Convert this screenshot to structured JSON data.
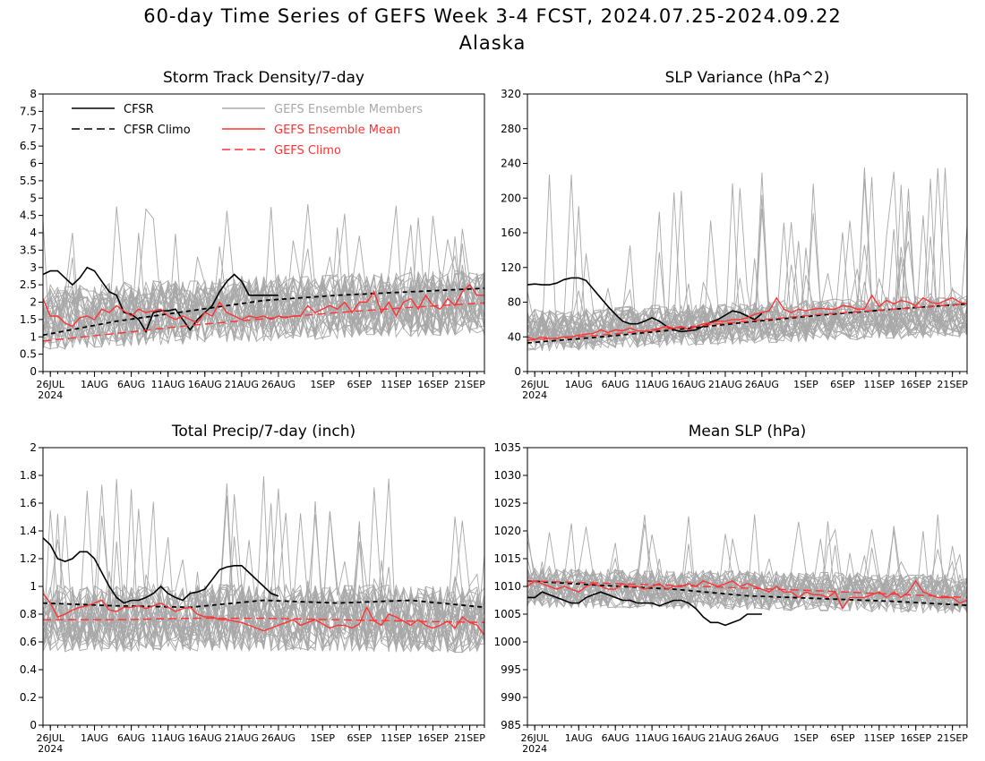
{
  "title": "60-day Time Series of GEFS Week 3-4 FCST, 2024.07.25-2024.09.22",
  "subtitle": "Alaska",
  "colors": {
    "cfsr": "#000000",
    "members": "#a8a8a8",
    "ensemble_mean": "#ff3333",
    "gefs_climo": "#ff3333"
  },
  "legend": {
    "placement": "top-left of first panel",
    "items": [
      {
        "label": "CFSR",
        "style": "solid",
        "color": "#000000"
      },
      {
        "label": "CFSR Climo",
        "style": "dashed",
        "color": "#000000"
      },
      {
        "label": "GEFS Ensemble Members",
        "style": "solid",
        "color": "#a8a8a8"
      },
      {
        "label": "GEFS Ensemble Mean",
        "style": "solid",
        "color": "#ff3333"
      },
      {
        "label": "GEFS Climo",
        "style": "dashed",
        "color": "#ff3333"
      }
    ]
  },
  "x_axis": {
    "range_days": [
      0,
      60
    ],
    "tick_labels": [
      "26JUL",
      "1AUG",
      "6AUG",
      "11AUG",
      "16AUG",
      "21AUG",
      "26AUG",
      "1SEP",
      "6SEP",
      "11SEP",
      "16SEP",
      "21SEP"
    ],
    "tick_days": [
      1,
      7,
      12,
      17,
      22,
      27,
      32,
      38,
      43,
      48,
      53,
      58
    ],
    "year_label": "2024"
  },
  "chart_data": [
    {
      "type": "line",
      "title": "Storm Track Density/7-day",
      "ylim": [
        0,
        8
      ],
      "yticks": [
        "0",
        "0.5",
        "1",
        "1.5",
        "2",
        "2.5",
        "3",
        "3.5",
        "4",
        "4.5",
        "5",
        "5.5",
        "6",
        "6.5",
        "7",
        "7.5",
        "8"
      ],
      "grid": false,
      "members": {
        "count": 31,
        "center": 2.0,
        "spread": 0.85,
        "max": 4.9
      },
      "series": [
        {
          "name": "CFSR",
          "x": [
            0,
            1,
            2,
            3,
            4,
            5,
            6,
            7,
            8,
            9,
            10,
            11,
            12,
            13,
            14,
            15,
            16,
            17,
            18,
            19,
            20,
            21,
            22,
            23,
            24,
            25,
            26,
            27,
            28,
            29,
            30,
            31,
            32
          ],
          "y": [
            2.8,
            2.9,
            2.9,
            2.7,
            2.5,
            2.7,
            3.0,
            2.9,
            2.6,
            2.3,
            2.2,
            1.7,
            1.65,
            1.5,
            1.15,
            1.7,
            1.75,
            1.75,
            1.8,
            1.5,
            1.2,
            1.5,
            1.7,
            1.9,
            2.3,
            2.6,
            2.8,
            2.6,
            2.2,
            2.2,
            2.2,
            2.2,
            2.2
          ]
        },
        {
          "name": "CFSR Climo",
          "x": [
            0,
            10,
            20,
            30,
            40,
            50,
            60
          ],
          "y": [
            1.05,
            1.45,
            1.75,
            2.05,
            2.2,
            2.3,
            2.4
          ]
        },
        {
          "name": "GEFS Ensemble Mean",
          "y": [
            2.1,
            1.6,
            1.6,
            1.4,
            1.3,
            1.55,
            1.6,
            1.5,
            1.8,
            1.7,
            1.9,
            1.75,
            1.6,
            1.8,
            1.7,
            1.75,
            1.8,
            1.6,
            1.5,
            1.6,
            1.5,
            1.4,
            1.7,
            1.6,
            2.0,
            1.7,
            1.6,
            1.5,
            1.6,
            1.55,
            1.6,
            1.5,
            1.6,
            1.55,
            1.6,
            1.6,
            1.9,
            1.7,
            1.8,
            1.9,
            1.8,
            2.0,
            1.7,
            2.0,
            2.0,
            2.3,
            1.7,
            2.0,
            1.6,
            2.0,
            2.1,
            1.8,
            2.2,
            1.9,
            1.8,
            2.1,
            1.9,
            2.3,
            2.5,
            2.2,
            2.2
          ]
        },
        {
          "name": "GEFS Climo",
          "x": [
            0,
            10,
            20,
            30,
            40,
            50,
            60
          ],
          "y": [
            0.88,
            1.1,
            1.33,
            1.52,
            1.7,
            1.85,
            1.98
          ]
        }
      ]
    },
    {
      "type": "line",
      "title": "SLP Variance (hPa^2)",
      "ylim": [
        0,
        320
      ],
      "yticks": [
        "0",
        "40",
        "80",
        "120",
        "160",
        "200",
        "240",
        "280",
        "320"
      ],
      "grid": false,
      "members": {
        "count": 31,
        "center": 55,
        "spread": 22,
        "max": 240
      },
      "series": [
        {
          "name": "CFSR",
          "x": [
            0,
            1,
            2,
            3,
            4,
            5,
            6,
            7,
            8,
            9,
            10,
            11,
            12,
            13,
            14,
            15,
            16,
            17,
            18,
            19,
            20,
            21,
            22,
            23,
            24,
            25,
            26,
            27,
            28,
            29,
            30,
            31,
            32
          ],
          "y": [
            100,
            101,
            100,
            100,
            102,
            106,
            108,
            108,
            105,
            95,
            85,
            75,
            66,
            58,
            55,
            55,
            58,
            62,
            58,
            52,
            48,
            46,
            47,
            48,
            52,
            57,
            60,
            65,
            70,
            68,
            64,
            60,
            67
          ]
        },
        {
          "name": "CFSR Climo",
          "x": [
            0,
            10,
            20,
            30,
            40,
            50,
            60
          ],
          "y": [
            33,
            40,
            48,
            57,
            65,
            72,
            78
          ]
        },
        {
          "name": "GEFS Ensemble Mean",
          "y": [
            40,
            37,
            40,
            38,
            38,
            40,
            40,
            42,
            43,
            44,
            48,
            45,
            48,
            47,
            50,
            47,
            46,
            48,
            50,
            52,
            50,
            52,
            48,
            52,
            55,
            56,
            58,
            58,
            60,
            60,
            62,
            66,
            68,
            70,
            85,
            72,
            68,
            72,
            70,
            72,
            73,
            72,
            72,
            76,
            75,
            72,
            72,
            88,
            75,
            82,
            78,
            82,
            80,
            76,
            85,
            80,
            78,
            82,
            85,
            80,
            78
          ]
        },
        {
          "name": "GEFS Climo",
          "x": [
            0,
            10,
            20,
            30,
            40,
            50,
            60
          ],
          "y": [
            36,
            42,
            50,
            58,
            66,
            72,
            78
          ]
        }
      ]
    },
    {
      "type": "line",
      "title": "Total Precip/7-day (inch)",
      "ylim": [
        0,
        2
      ],
      "yticks": [
        "0",
        "0.2",
        "0.4",
        "0.6",
        "0.8",
        "1",
        "1.2",
        "1.4",
        "1.6",
        "1.8",
        "2"
      ],
      "grid": false,
      "members": {
        "count": 31,
        "center": 0.78,
        "spread": 0.22,
        "max": 1.8
      },
      "series": [
        {
          "name": "CFSR",
          "x": [
            0,
            1,
            2,
            3,
            4,
            5,
            6,
            7,
            8,
            9,
            10,
            11,
            12,
            13,
            14,
            15,
            16,
            17,
            18,
            19,
            20,
            21,
            22,
            23,
            24,
            25,
            26,
            27,
            28,
            29,
            30,
            31,
            32
          ],
          "y": [
            1.35,
            1.3,
            1.2,
            1.18,
            1.2,
            1.25,
            1.25,
            1.2,
            1.1,
            1.0,
            0.92,
            0.88,
            0.9,
            0.9,
            0.92,
            0.95,
            1.0,
            0.95,
            0.92,
            0.9,
            0.95,
            0.96,
            0.98,
            1.05,
            1.12,
            1.14,
            1.15,
            1.15,
            1.1,
            1.05,
            1.0,
            0.95,
            0.93
          ]
        },
        {
          "name": "CFSR Climo",
          "x": [
            0,
            10,
            20,
            30,
            40,
            50,
            60
          ],
          "y": [
            0.88,
            0.86,
            0.85,
            0.9,
            0.88,
            0.9,
            0.85
          ]
        },
        {
          "name": "GEFS Ensemble Mean",
          "y": [
            0.95,
            0.88,
            0.78,
            0.8,
            0.83,
            0.85,
            0.86,
            0.88,
            0.9,
            0.83,
            0.82,
            0.85,
            0.85,
            0.86,
            0.84,
            0.86,
            0.88,
            0.85,
            0.82,
            0.84,
            0.85,
            0.8,
            0.78,
            0.78,
            0.76,
            0.76,
            0.75,
            0.74,
            0.72,
            0.7,
            0.68,
            0.7,
            0.72,
            0.74,
            0.76,
            0.72,
            0.74,
            0.76,
            0.73,
            0.7,
            0.72,
            0.72,
            0.7,
            0.73,
            0.85,
            0.75,
            0.72,
            0.8,
            0.78,
            0.75,
            0.72,
            0.76,
            0.72,
            0.7,
            0.72,
            0.75,
            0.7,
            0.78,
            0.74,
            0.72,
            0.65
          ]
        },
        {
          "name": "GEFS Climo",
          "x": [
            0,
            10,
            20,
            30,
            40,
            50,
            60
          ],
          "y": [
            0.76,
            0.76,
            0.77,
            0.77,
            0.76,
            0.75,
            0.74
          ]
        }
      ]
    },
    {
      "type": "line",
      "title": "Mean SLP (hPa)",
      "ylim": [
        985,
        1035
      ],
      "yticks": [
        "985",
        "990",
        "995",
        "1000",
        "1005",
        "1010",
        "1015",
        "1020",
        "1025",
        "1030",
        "1035"
      ],
      "grid": false,
      "members": {
        "count": 31,
        "center": 1009,
        "spread": 3.2,
        "max": 1023
      },
      "series": [
        {
          "name": "CFSR",
          "x": [
            0,
            1,
            2,
            3,
            4,
            5,
            6,
            7,
            8,
            9,
            10,
            11,
            12,
            13,
            14,
            15,
            16,
            17,
            18,
            19,
            20,
            21,
            22,
            23,
            24,
            25,
            26,
            27,
            28,
            29,
            30,
            31,
            32
          ],
          "y": [
            1008,
            1008,
            1009,
            1008.5,
            1008,
            1007.5,
            1007,
            1007,
            1008,
            1008.5,
            1009,
            1008.5,
            1008,
            1007.5,
            1007.5,
            1007,
            1007,
            1007,
            1006.5,
            1007,
            1007.5,
            1007.5,
            1007,
            1006,
            1004.5,
            1003.5,
            1003.5,
            1003,
            1003.5,
            1004,
            1005,
            1005,
            1005
          ]
        },
        {
          "name": "CFSR Climo",
          "x": [
            0,
            10,
            20,
            30,
            40,
            50,
            60
          ],
          "y": [
            1011,
            1010.2,
            1009.5,
            1008.3,
            1007.8,
            1007.3,
            1006.6
          ]
        },
        {
          "name": "GEFS Ensemble Mean",
          "y": [
            1010,
            1011,
            1010.5,
            1010,
            1009.5,
            1010,
            1009.5,
            1009,
            1010,
            1010.5,
            1010,
            1009.5,
            1009.5,
            1010.5,
            1010,
            1010,
            1009.5,
            1010,
            1010.5,
            1009.5,
            1010,
            1010,
            1010.5,
            1010,
            1011,
            1010.5,
            1010,
            1010.5,
            1011,
            1010,
            1010.5,
            1010,
            1009.5,
            1009,
            1010,
            1009,
            1009,
            1008,
            1009,
            1008.5,
            1008.5,
            1008,
            1009,
            1006,
            1008,
            1008,
            1008,
            1008.5,
            1009,
            1008,
            1009,
            1008,
            1009,
            1011,
            1009,
            1008.5,
            1008,
            1008,
            1008,
            1007,
            1007.5
          ]
        },
        {
          "name": "GEFS Climo",
          "x": [
            0,
            10,
            20,
            30,
            40,
            50,
            60
          ],
          "y": [
            1011,
            1010.6,
            1010.2,
            1009.7,
            1009.2,
            1008.6,
            1008
          ]
        }
      ]
    }
  ]
}
